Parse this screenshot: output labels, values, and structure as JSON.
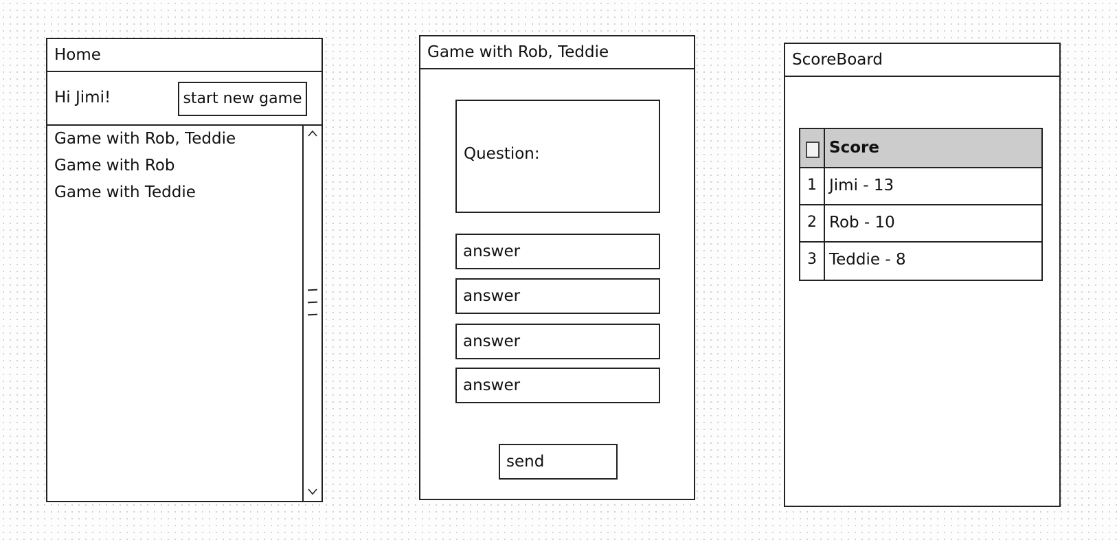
{
  "home": {
    "title": "Home",
    "greeting": "Hi Jimi!",
    "new_game_label": "start new game",
    "games": [
      "Game with Rob, Teddie",
      "Game with Rob",
      "Game with Teddie"
    ],
    "scroll_up_icon": "chevron-up-icon",
    "scroll_down_icon": "chevron-down-icon"
  },
  "game": {
    "title": "Game with Rob, Teddie",
    "question_label": "Question:",
    "answers": [
      "answer",
      "answer",
      "answer",
      "answer"
    ],
    "send_label": "send"
  },
  "scoreboard": {
    "title": "ScoreBoard",
    "header": "Score",
    "rows": [
      {
        "rank": "1",
        "value": "Jimi - 13"
      },
      {
        "rank": "2",
        "value": "Rob - 10"
      },
      {
        "rank": "3",
        "value": "Teddie - 8"
      }
    ]
  }
}
